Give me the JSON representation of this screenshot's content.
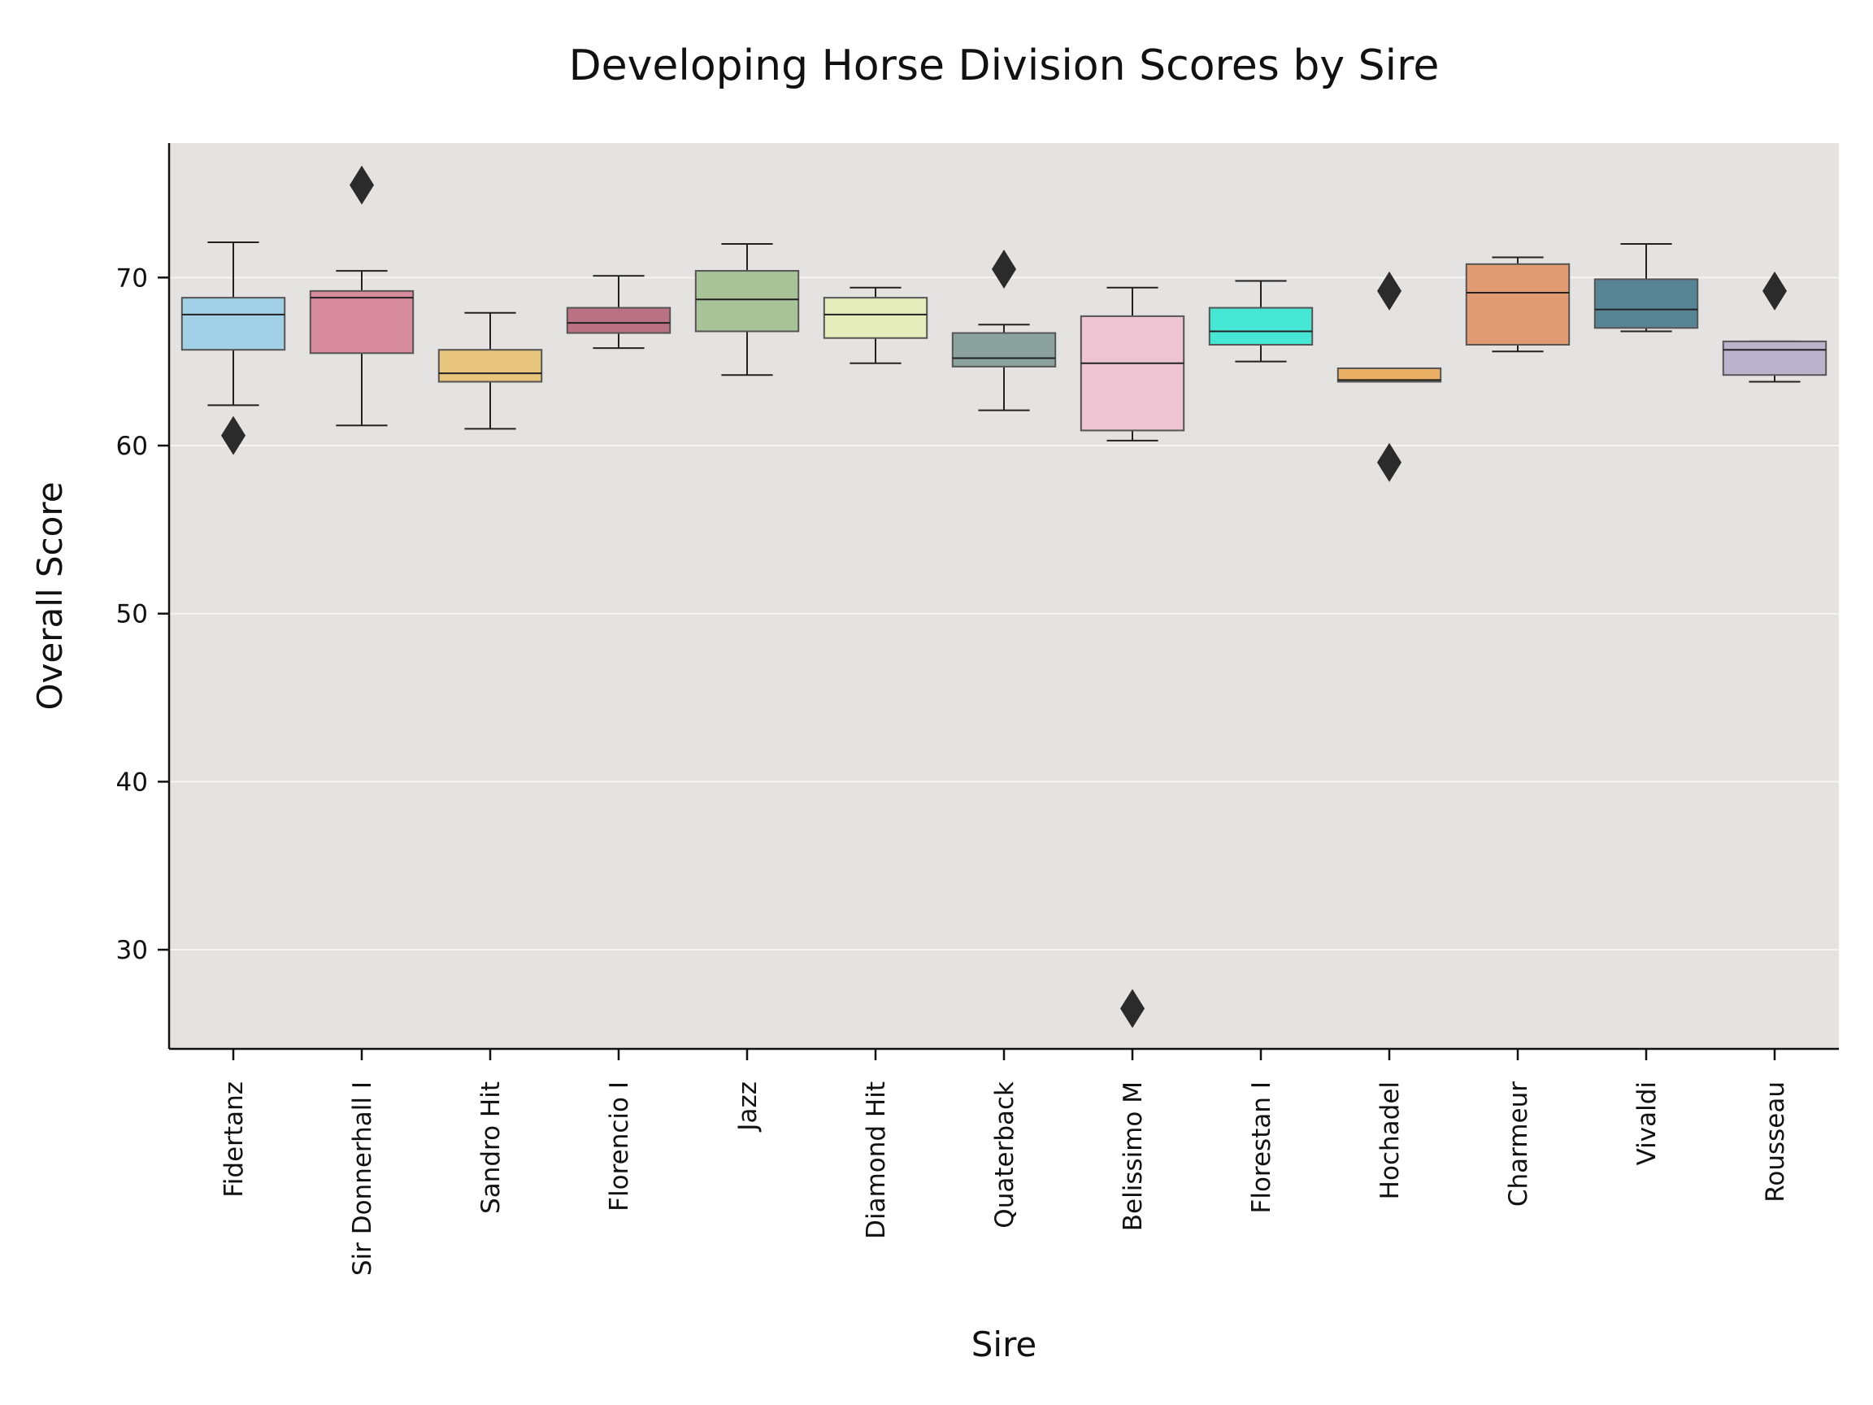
{
  "chart_data": {
    "type": "box",
    "title": "Developing Horse Division Scores by Sire",
    "xlabel": "Sire",
    "ylabel": "Overall Score",
    "ylim": [
      24.1,
      78
    ],
    "yticks": [
      30,
      40,
      50,
      60,
      70
    ],
    "grid": true,
    "background": "#e4e3e1",
    "categories": [
      "Fidertanz",
      "Sir Donnerhall I",
      "Sandro Hit",
      "Florencio I",
      "Jazz",
      "Diamond Hit",
      "Quaterback",
      "Belissimo M",
      "Florestan I",
      "Hochadel",
      "Charmeur",
      "Vivaldi",
      "Rousseau"
    ],
    "colors": [
      "#95cde8",
      "#d77b92",
      "#e9c06b",
      "#b35d73",
      "#9dbd8b",
      "#e6f0b7",
      "#7d9690",
      "#f0bed0",
      "#2ce8d3",
      "#eaa64d",
      "#df8e5f",
      "#3e7488",
      "#b3aac8"
    ],
    "boxes": [
      {
        "whisker_low": 62.4,
        "q1": 65.7,
        "median": 67.8,
        "q3": 68.8,
        "whisker_high": 72.1,
        "outliers": [
          60.6
        ]
      },
      {
        "whisker_low": 61.2,
        "q1": 65.5,
        "median": 68.8,
        "q3": 69.2,
        "whisker_high": 70.4,
        "outliers": [
          75.5
        ]
      },
      {
        "whisker_low": 61.0,
        "q1": 63.8,
        "median": 64.3,
        "q3": 65.7,
        "whisker_high": 67.9,
        "outliers": []
      },
      {
        "whisker_low": 65.8,
        "q1": 66.7,
        "median": 67.3,
        "q3": 68.2,
        "whisker_high": 70.1,
        "outliers": []
      },
      {
        "whisker_low": 64.2,
        "q1": 66.8,
        "median": 68.7,
        "q3": 70.4,
        "whisker_high": 72.0,
        "outliers": []
      },
      {
        "whisker_low": 64.9,
        "q1": 66.4,
        "median": 67.8,
        "q3": 68.8,
        "whisker_high": 69.4,
        "outliers": []
      },
      {
        "whisker_low": 62.1,
        "q1": 64.7,
        "median": 65.2,
        "q3": 66.7,
        "whisker_high": 67.2,
        "outliers": [
          70.5
        ]
      },
      {
        "whisker_low": 60.3,
        "q1": 60.9,
        "median": 64.9,
        "q3": 67.7,
        "whisker_high": 69.4,
        "outliers": [
          26.5
        ]
      },
      {
        "whisker_low": 65.0,
        "q1": 66.0,
        "median": 66.8,
        "q3": 68.2,
        "whisker_high": 69.8,
        "outliers": []
      },
      {
        "whisker_low": 63.8,
        "q1": 63.8,
        "median": 63.9,
        "q3": 64.6,
        "whisker_high": 64.6,
        "outliers": [
          69.2,
          59.0
        ]
      },
      {
        "whisker_low": 65.6,
        "q1": 66.0,
        "median": 69.1,
        "q3": 70.8,
        "whisker_high": 71.2,
        "outliers": []
      },
      {
        "whisker_low": 66.8,
        "q1": 67.0,
        "median": 68.1,
        "q3": 69.9,
        "whisker_high": 72.0,
        "outliers": []
      },
      {
        "whisker_low": 63.8,
        "q1": 64.2,
        "median": 65.7,
        "q3": 66.2,
        "whisker_high": 66.2,
        "outliers": [
          69.2
        ]
      }
    ]
  }
}
